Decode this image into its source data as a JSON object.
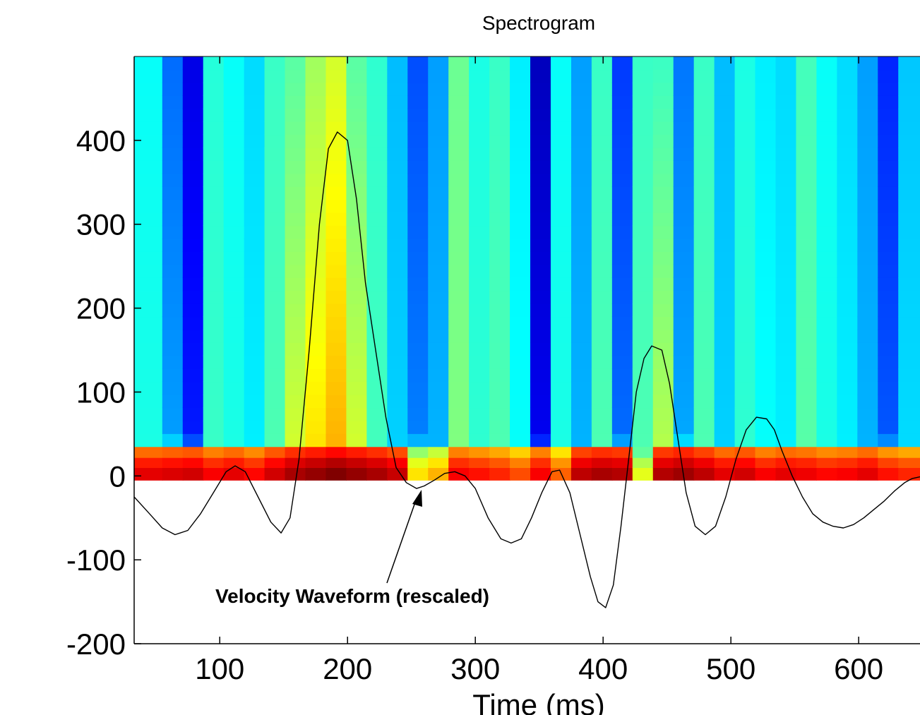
{
  "chart_data": {
    "type": "heatmap",
    "title": "Spectrogram",
    "xlabel": "Time (ms)",
    "ylabel": "",
    "xlim": [
      33,
      648
    ],
    "ylim": [
      -200,
      500
    ],
    "x_ticks": [
      100,
      200,
      300,
      400,
      500,
      600
    ],
    "y_ticks": [
      -200,
      -100,
      0,
      100,
      200,
      300,
      400
    ],
    "x_tick_labels": [
      "100",
      "200",
      "300",
      "400",
      "500",
      "600"
    ],
    "y_tick_labels": [
      "-200",
      "-100",
      "0",
      "100",
      "200",
      "300",
      "400"
    ],
    "heatmap": {
      "colormap": "jet",
      "y_start": -5,
      "y_end": 500,
      "x_edges": [
        33,
        55,
        71,
        87,
        103,
        119,
        135,
        151,
        167,
        183,
        199,
        215,
        231,
        247,
        263,
        279,
        295,
        311,
        327,
        343,
        359,
        375,
        391,
        407,
        423,
        439,
        455,
        471,
        487,
        503,
        519,
        535,
        551,
        567,
        583,
        599,
        615,
        631,
        648
      ],
      "column_levels": [
        0.4,
        0.25,
        0.12,
        0.43,
        0.4,
        0.36,
        0.45,
        0.58,
        0.65,
        0.7,
        0.58,
        0.44,
        0.33,
        0.22,
        0.3,
        0.5,
        0.42,
        0.45,
        0.38,
        0.08,
        0.4,
        0.3,
        0.45,
        0.2,
        0.45,
        0.55,
        0.26,
        0.45,
        0.33,
        0.42,
        0.38,
        0.36,
        0.46,
        0.4,
        0.36,
        0.3,
        0.18,
        0.34
      ],
      "low_band_levels": [
        0.9,
        0.91,
        0.92,
        0.88,
        0.9,
        0.87,
        0.92,
        0.96,
        0.98,
        1.0,
        0.98,
        0.96,
        0.93,
        0.65,
        0.7,
        0.88,
        0.86,
        0.84,
        0.8,
        0.88,
        0.78,
        0.94,
        0.96,
        0.95,
        0.6,
        0.95,
        0.97,
        0.94,
        0.9,
        0.92,
        0.88,
        0.9,
        0.89,
        0.87,
        0.88,
        0.9,
        0.86,
        0.84
      ]
    },
    "series": [
      {
        "type": "line",
        "color": "#000000",
        "x": [
          33,
          45,
          55,
          65,
          75,
          85,
          95,
          105,
          112,
          120,
          130,
          140,
          148,
          155,
          162,
          170,
          178,
          185,
          192,
          200,
          207,
          214,
          222,
          230,
          238,
          246,
          254,
          260,
          268,
          276,
          284,
          292,
          300,
          310,
          320,
          328,
          336,
          344,
          352,
          360,
          366,
          374,
          382,
          390,
          396,
          402,
          408,
          414,
          420,
          426,
          432,
          438,
          446,
          452,
          458,
          465,
          472,
          480,
          488,
          496,
          504,
          512,
          520,
          528,
          534,
          540,
          548,
          556,
          564,
          572,
          580,
          588,
          596,
          604,
          612,
          620,
          628,
          636,
          642,
          648
        ],
        "y": [
          -25,
          -45,
          -62,
          -70,
          -65,
          -45,
          -20,
          5,
          12,
          5,
          -25,
          -55,
          -68,
          -50,
          20,
          150,
          300,
          390,
          410,
          400,
          330,
          230,
          150,
          70,
          10,
          -8,
          -15,
          -12,
          -5,
          3,
          5,
          0,
          -15,
          -50,
          -75,
          -80,
          -75,
          -50,
          -20,
          5,
          7,
          -20,
          -70,
          -120,
          -150,
          -157,
          -130,
          -60,
          20,
          100,
          140,
          155,
          150,
          110,
          50,
          -20,
          -60,
          -70,
          -60,
          -25,
          20,
          55,
          70,
          68,
          55,
          30,
          0,
          -25,
          -45,
          -55,
          -60,
          -62,
          -58,
          -50,
          -40,
          -30,
          -18,
          -8,
          -3,
          -1
        ]
      }
    ],
    "annotations": [
      {
        "text": "Velocity Waveform (rescaled)",
        "arrow_to": [
          258,
          -15
        ]
      }
    ],
    "grid": false,
    "legend": "none"
  }
}
